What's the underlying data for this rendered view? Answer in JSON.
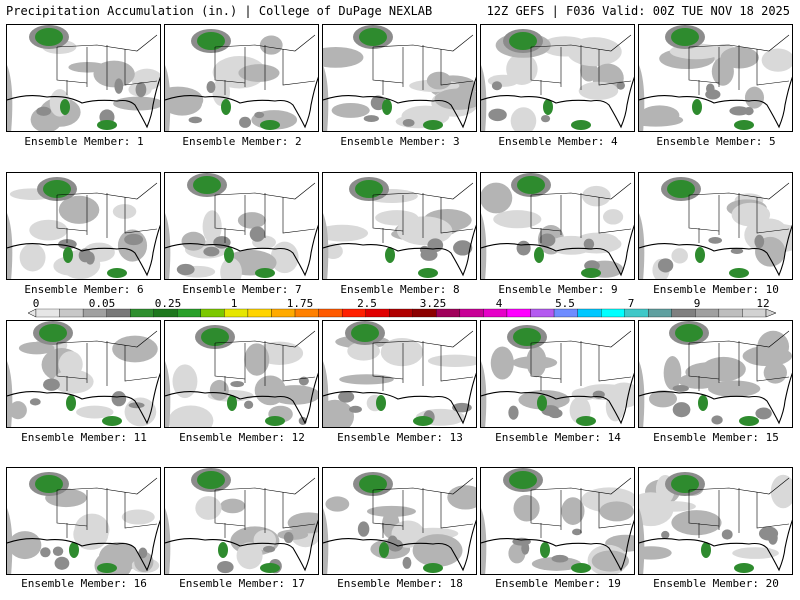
{
  "header": {
    "left_title": "Precipitation Accumulation (in.) | College of DuPage NEXLAB",
    "right_title": "12Z GEFS | F036 Valid: 00Z TUE NOV 18 2025"
  },
  "members": [
    {
      "label": "Ensemble Member: 1"
    },
    {
      "label": "Ensemble Member: 2"
    },
    {
      "label": "Ensemble Member: 3"
    },
    {
      "label": "Ensemble Member: 4"
    },
    {
      "label": "Ensemble Member: 5"
    },
    {
      "label": "Ensemble Member: 6"
    },
    {
      "label": "Ensemble Member: 7"
    },
    {
      "label": "Ensemble Member: 8"
    },
    {
      "label": "Ensemble Member: 9"
    },
    {
      "label": "Ensemble Member: 10"
    },
    {
      "label": "Ensemble Member: 11"
    },
    {
      "label": "Ensemble Member: 12"
    },
    {
      "label": "Ensemble Member: 13"
    },
    {
      "label": "Ensemble Member: 14"
    },
    {
      "label": "Ensemble Member: 15"
    },
    {
      "label": "Ensemble Member: 16"
    },
    {
      "label": "Ensemble Member: 17"
    },
    {
      "label": "Ensemble Member: 18"
    },
    {
      "label": "Ensemble Member: 19"
    },
    {
      "label": "Ensemble Member: 20"
    }
  ],
  "colorbar": {
    "tick_labels": [
      "0",
      "0.05",
      "0.25",
      "1",
      "1.75",
      "2.5",
      "3.25",
      "4",
      "5.5",
      "7",
      "9",
      "12"
    ],
    "colors": [
      "#e6e6e6",
      "#c8c8c8",
      "#a0a0a0",
      "#787878",
      "#2f8f2f",
      "#1e781e",
      "#2aa02a",
      "#7cc800",
      "#e6e600",
      "#ffd400",
      "#ffaa00",
      "#ff8000",
      "#ff5a00",
      "#ff2000",
      "#e00000",
      "#b00000",
      "#8c0000",
      "#a0005a",
      "#c80096",
      "#e600c8",
      "#ff00ff",
      "#b45af0",
      "#6e8cff",
      "#00c8ff",
      "#00ffff",
      "#40c8c8",
      "#60a0a0",
      "#808080",
      "#a0a0a0",
      "#bebebe",
      "#d2d2d2"
    ]
  },
  "map_colors": {
    "light": "#d9d9d9",
    "mid": "#b4b4b4",
    "dark": "#8c8c8c",
    "green": "#2e8b2e"
  }
}
